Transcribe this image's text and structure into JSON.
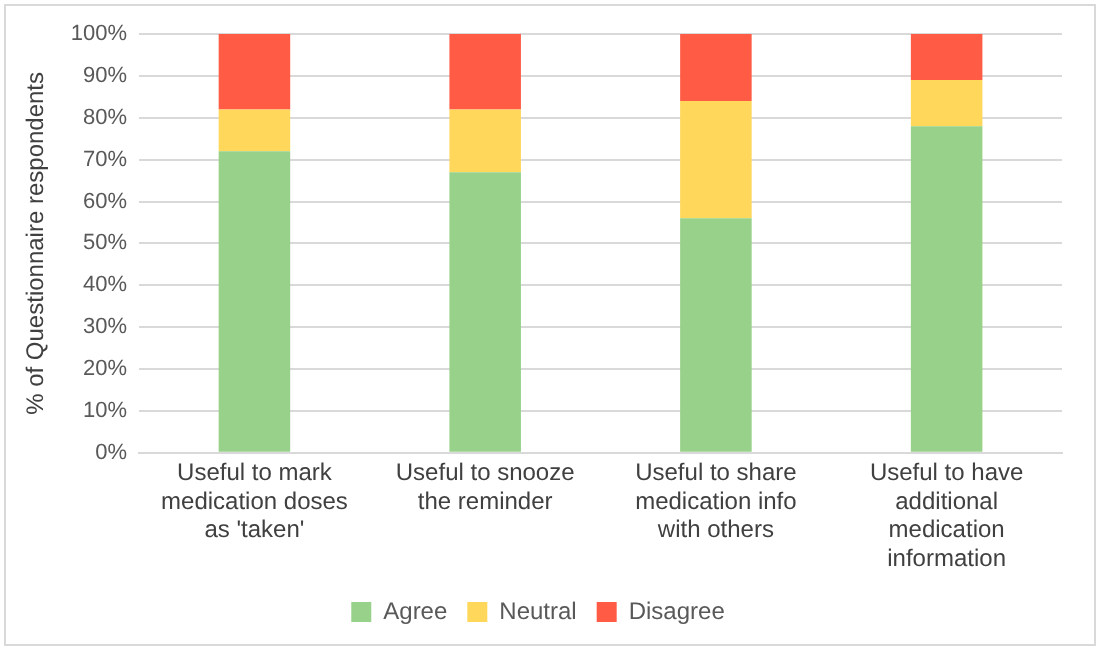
{
  "chart_data": {
    "type": "bar",
    "stacked": true,
    "ylabel": "% of Questionnaire respondents",
    "categories": [
      "Useful to mark\nmedication doses\nas 'taken'",
      "Useful to snooze\nthe reminder",
      "Useful to share\nmedication info\nwith others",
      "Useful to have\nadditional\nmedication\ninformation"
    ],
    "series": [
      {
        "name": "Agree",
        "color": "#97d18a",
        "values": [
          72,
          67,
          56,
          78
        ]
      },
      {
        "name": "Neutral",
        "color": "#ffd75a",
        "values": [
          10,
          15,
          28,
          11
        ]
      },
      {
        "name": "Disagree",
        "color": "#ff5b45",
        "values": [
          18,
          18,
          16,
          11
        ]
      }
    ],
    "ylim": [
      0,
      100
    ],
    "yticks": [
      {
        "value": 0,
        "label": "0%"
      },
      {
        "value": 10,
        "label": "10%"
      },
      {
        "value": 20,
        "label": "20%"
      },
      {
        "value": 30,
        "label": "30%"
      },
      {
        "value": 40,
        "label": "40%"
      },
      {
        "value": 50,
        "label": "50%"
      },
      {
        "value": 60,
        "label": "60%"
      },
      {
        "value": 70,
        "label": "70%"
      },
      {
        "value": 80,
        "label": "80%"
      },
      {
        "value": 90,
        "label": "90%"
      },
      {
        "value": 100,
        "label": "100%"
      }
    ],
    "grid": "y",
    "legend": "bottom"
  }
}
